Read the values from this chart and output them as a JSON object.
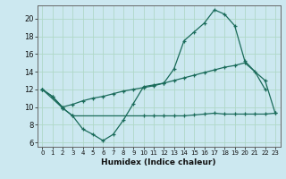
{
  "title": "",
  "xlabel": "Humidex (Indice chaleur)",
  "bg_color": "#cce8f0",
  "grid_color": "#b0d8c8",
  "line_color": "#1a6b5a",
  "xlim": [
    -0.5,
    23.5
  ],
  "ylim": [
    5.5,
    21.5
  ],
  "yticks": [
    6,
    8,
    10,
    12,
    14,
    16,
    18,
    20
  ],
  "xticks": [
    0,
    1,
    2,
    3,
    4,
    5,
    6,
    7,
    8,
    9,
    10,
    11,
    12,
    13,
    14,
    15,
    16,
    17,
    18,
    19,
    20,
    21,
    22,
    23
  ],
  "line1_x": [
    0,
    1,
    2,
    3,
    4,
    5,
    6,
    7,
    8,
    9,
    10,
    11,
    12,
    13,
    14,
    15,
    16,
    17,
    18,
    19,
    20,
    21,
    22
  ],
  "line1_y": [
    12.0,
    11.2,
    9.9,
    9.0,
    7.5,
    6.9,
    6.2,
    6.9,
    8.5,
    10.4,
    12.3,
    12.5,
    12.7,
    14.3,
    17.5,
    18.5,
    19.5,
    21.0,
    20.5,
    19.2,
    15.2,
    14.0,
    12.0
  ],
  "line2_x": [
    0,
    1,
    2,
    3,
    4,
    5,
    6,
    7,
    8,
    9,
    10,
    11,
    12,
    13,
    14,
    15,
    16,
    17,
    18,
    19,
    20,
    22,
    23
  ],
  "line2_y": [
    12.0,
    11.2,
    10.0,
    10.3,
    10.7,
    11.0,
    11.2,
    11.5,
    11.8,
    12.0,
    12.2,
    12.4,
    12.7,
    13.0,
    13.3,
    13.6,
    13.9,
    14.2,
    14.5,
    14.7,
    15.0,
    13.0,
    9.3
  ],
  "line3_x": [
    0,
    2,
    3,
    10,
    11,
    12,
    13,
    14,
    15,
    16,
    17,
    18,
    19,
    20,
    21,
    22,
    23
  ],
  "line3_y": [
    12.0,
    9.9,
    9.0,
    9.0,
    9.0,
    9.0,
    9.0,
    9.0,
    9.1,
    9.2,
    9.3,
    9.2,
    9.2,
    9.2,
    9.2,
    9.2,
    9.3
  ]
}
